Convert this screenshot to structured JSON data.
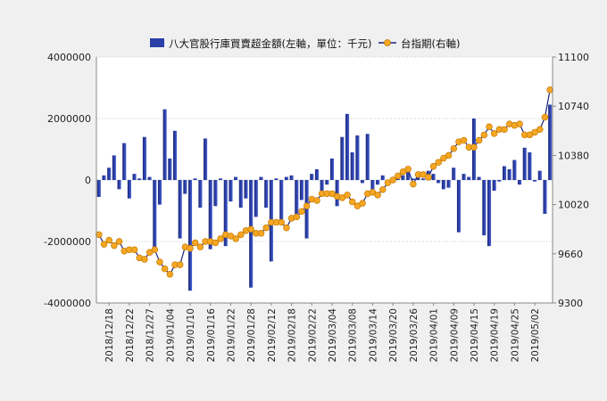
{
  "chart_data": {
    "type": "bar+line",
    "legend": {
      "bar_label": "八大官股行庫買賣超金額(左軸，單位：千元)",
      "line_label": "台指期(右軸)",
      "placement": "top-center"
    },
    "colors": {
      "bar": "#2B3FA8",
      "line": "#1a237e",
      "marker": "#F5A623",
      "marker_edge": "#C57A00",
      "grid": "#bdbdbd"
    },
    "grid": true,
    "y_left": {
      "range": [
        -4000000,
        4000000
      ],
      "ticks": [
        "4000000",
        "2000000",
        "0",
        "-2000000",
        "-4000000"
      ],
      "tick_values": [
        4000000,
        2000000,
        0,
        -2000000,
        -4000000
      ]
    },
    "y_right": {
      "range": [
        9300,
        11100
      ],
      "ticks": [
        "11100",
        "10740",
        "10380",
        "10020",
        "9660",
        "9300"
      ],
      "tick_values": [
        11100,
        10740,
        10380,
        10020,
        9660,
        9300
      ]
    },
    "x_tick_labels": [
      {
        "label": "2018/12/18",
        "index": 2
      },
      {
        "label": "2018/12/22",
        "index": 6
      },
      {
        "label": "2018/12/27",
        "index": 10
      },
      {
        "label": "2019/01/04",
        "index": 14
      },
      {
        "label": "2019/01/10",
        "index": 18
      },
      {
        "label": "2019/01/16",
        "index": 22
      },
      {
        "label": "2019/01/22",
        "index": 26
      },
      {
        "label": "2019/01/28",
        "index": 30
      },
      {
        "label": "2019/02/12",
        "index": 34
      },
      {
        "label": "2019/02/18",
        "index": 38
      },
      {
        "label": "2019/02/22",
        "index": 42
      },
      {
        "label": "2019/03/04",
        "index": 46
      },
      {
        "label": "2019/03/08",
        "index": 50
      },
      {
        "label": "2019/03/14",
        "index": 54
      },
      {
        "label": "2019/03/20",
        "index": 58
      },
      {
        "label": "2019/03/26",
        "index": 62
      },
      {
        "label": "2019/04/01",
        "index": 66
      },
      {
        "label": "2019/04/09",
        "index": 70
      },
      {
        "label": "2019/04/15",
        "index": 74
      },
      {
        "label": "2019/04/19",
        "index": 78
      },
      {
        "label": "2019/04/25",
        "index": 82
      },
      {
        "label": "2019/05/02",
        "index": 86
      }
    ],
    "series": [
      {
        "name": "八大官股行庫買賣超金額(左軸，單位：千元)",
        "axis": "left",
        "kind": "bar",
        "values": [
          -550000,
          150000,
          400000,
          800000,
          -300000,
          1200000,
          -600000,
          200000,
          50000,
          1400000,
          100000,
          -2200000,
          -800000,
          2300000,
          700000,
          1600000,
          -1900000,
          -450000,
          -3600000,
          50000,
          -900000,
          1350000,
          -2250000,
          -850000,
          50000,
          -2150000,
          -700000,
          100000,
          -900000,
          -600000,
          -3500000,
          -1200000,
          100000,
          -900000,
          -2650000,
          50000,
          -1300000,
          100000,
          150000,
          -1200000,
          -650000,
          -1900000,
          200000,
          350000,
          -350000,
          -150000,
          700000,
          -850000,
          1400000,
          2150000,
          900000,
          1450000,
          -100000,
          1500000,
          -300000,
          -150000,
          150000,
          -100000,
          50000,
          200000,
          150000,
          250000,
          50000,
          150000,
          50000,
          300000,
          200000,
          -100000,
          -300000,
          -250000,
          400000,
          -1700000,
          200000,
          100000,
          2000000,
          100000,
          -1800000,
          -2150000,
          -350000,
          -50000,
          450000,
          350000,
          650000,
          -150000,
          1050000,
          900000,
          -50000,
          300000,
          -1100000,
          2450000
        ]
      },
      {
        "name": "台指期(右軸)",
        "axis": "right",
        "kind": "line",
        "values": [
          9800,
          9730,
          9760,
          9720,
          9750,
          9680,
          9690,
          9690,
          9630,
          9620,
          9670,
          9690,
          9600,
          9550,
          9510,
          9580,
          9580,
          9710,
          9700,
          9740,
          9710,
          9750,
          9750,
          9740,
          9770,
          9800,
          9790,
          9770,
          9800,
          9830,
          9840,
          9810,
          9810,
          9850,
          9890,
          9890,
          9890,
          9850,
          9920,
          9930,
          9970,
          10010,
          10060,
          10050,
          10100,
          10100,
          10100,
          10080,
          10070,
          10090,
          10040,
          10010,
          10030,
          10100,
          10110,
          10090,
          10130,
          10180,
          10200,
          10230,
          10260,
          10280,
          10170,
          10240,
          10240,
          10220,
          10300,
          10330,
          10360,
          10380,
          10430,
          10480,
          10490,
          10440,
          10440,
          10490,
          10530,
          10590,
          10540,
          10570,
          10570,
          10610,
          10600,
          10610,
          10530,
          10530,
          10550,
          10570,
          10660,
          10860
        ]
      }
    ]
  }
}
